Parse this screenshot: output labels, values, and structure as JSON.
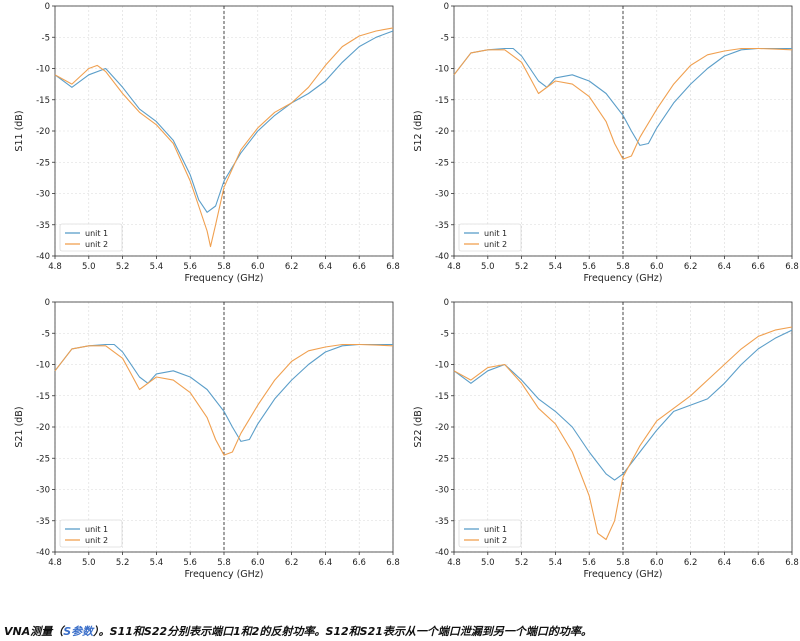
{
  "caption": {
    "part1": "VNA测量（",
    "link": "S参数",
    "part2": "）。S11和S22分别表示端口1和2的反射功率。S12和S21表示从一个端口泄漏到另一个端口的功率。"
  },
  "colors": {
    "unit1": "#5b9ec9",
    "unit2": "#f0a050",
    "marker": "#333333",
    "grid": "#d9d9d9"
  },
  "chart_data": [
    {
      "type": "line",
      "xlabel": "Frequency (GHz)",
      "ylabel": "S11 (dB)",
      "xlim": [
        4.8,
        6.8
      ],
      "ylim": [
        -40,
        0
      ],
      "xticks": [
        "4.8",
        "5.0",
        "5.2",
        "5.4",
        "5.6",
        "5.8",
        "6.0",
        "6.2",
        "6.4",
        "6.6",
        "6.8"
      ],
      "yticks": [
        "0",
        "-5",
        "-10",
        "-15",
        "-20",
        "-25",
        "-30",
        "-35",
        "-40"
      ],
      "grid": true,
      "legend": "lower-left",
      "marker_x": 5.8,
      "series": [
        {
          "name": "unit 1",
          "x": [
            4.8,
            4.9,
            5.0,
            5.1,
            5.2,
            5.3,
            5.4,
            5.5,
            5.6,
            5.65,
            5.7,
            5.75,
            5.8,
            5.9,
            6.0,
            6.1,
            6.2,
            6.3,
            6.4,
            6.5,
            6.6,
            6.7,
            6.8
          ],
          "y": [
            -11,
            -13,
            -11,
            -10,
            -13,
            -16.5,
            -18.5,
            -21.5,
            -27,
            -31,
            -33,
            -32,
            -28,
            -23.5,
            -20,
            -17.5,
            -15.5,
            -14,
            -12,
            -9,
            -6.5,
            -5,
            -4
          ]
        },
        {
          "name": "unit 2",
          "x": [
            4.8,
            4.9,
            5.0,
            5.05,
            5.1,
            5.2,
            5.3,
            5.4,
            5.5,
            5.6,
            5.65,
            5.7,
            5.72,
            5.75,
            5.8,
            5.9,
            6.0,
            6.1,
            6.2,
            6.3,
            6.4,
            6.5,
            6.6,
            6.7,
            6.8
          ],
          "y": [
            -11,
            -12.5,
            -10,
            -9.5,
            -10.5,
            -14,
            -17,
            -19,
            -22,
            -28,
            -32,
            -36,
            -38.5,
            -35,
            -29,
            -23,
            -19.5,
            -17,
            -15.5,
            -13,
            -9.5,
            -6.5,
            -4.8,
            -4,
            -3.5
          ]
        }
      ]
    },
    {
      "type": "line",
      "xlabel": "Frequency (GHz)",
      "ylabel": "S12 (dB)",
      "xlim": [
        4.8,
        6.8
      ],
      "ylim": [
        -40,
        0
      ],
      "xticks": [
        "4.8",
        "5.0",
        "5.2",
        "5.4",
        "5.6",
        "5.8",
        "6.0",
        "6.2",
        "6.4",
        "6.6",
        "6.8"
      ],
      "yticks": [
        "0",
        "-5",
        "-10",
        "-15",
        "-20",
        "-25",
        "-30",
        "-35",
        "-40"
      ],
      "grid": true,
      "legend": "lower-left",
      "marker_x": 5.8,
      "series": [
        {
          "name": "unit 1",
          "x": [
            4.8,
            4.9,
            5.0,
            5.1,
            5.15,
            5.2,
            5.3,
            5.35,
            5.4,
            5.5,
            5.6,
            5.7,
            5.8,
            5.85,
            5.9,
            5.95,
            6.0,
            6.1,
            6.2,
            6.3,
            6.4,
            6.5,
            6.6,
            6.7,
            6.8
          ],
          "y": [
            -11,
            -7.5,
            -7,
            -6.8,
            -6.8,
            -8,
            -12,
            -13,
            -11.5,
            -11,
            -12,
            -14,
            -17.5,
            -20,
            -22.3,
            -22,
            -19.5,
            -15.5,
            -12.5,
            -10,
            -8,
            -7,
            -6.8,
            -6.8,
            -6.8
          ]
        },
        {
          "name": "unit 2",
          "x": [
            4.8,
            4.9,
            5.0,
            5.1,
            5.2,
            5.25,
            5.3,
            5.4,
            5.5,
            5.6,
            5.7,
            5.75,
            5.8,
            5.85,
            5.9,
            6.0,
            6.1,
            6.2,
            6.3,
            6.4,
            6.5,
            6.6,
            6.7,
            6.8
          ],
          "y": [
            -11,
            -7.5,
            -7,
            -7,
            -9,
            -11.5,
            -14,
            -12,
            -12.5,
            -14.5,
            -18.5,
            -22,
            -24.5,
            -24,
            -21,
            -16.5,
            -12.5,
            -9.5,
            -7.8,
            -7.2,
            -6.8,
            -6.8,
            -6.9,
            -7
          ]
        }
      ]
    },
    {
      "type": "line",
      "xlabel": "Frequency (GHz)",
      "ylabel": "S21 (dB)",
      "xlim": [
        4.8,
        6.8
      ],
      "ylim": [
        -40,
        0
      ],
      "xticks": [
        "4.8",
        "5.0",
        "5.2",
        "5.4",
        "5.6",
        "5.8",
        "6.0",
        "6.2",
        "6.4",
        "6.6",
        "6.8"
      ],
      "yticks": [
        "0",
        "-5",
        "-10",
        "-15",
        "-20",
        "-25",
        "-30",
        "-35",
        "-40"
      ],
      "grid": true,
      "legend": "lower-left",
      "marker_x": 5.8,
      "series": [
        {
          "name": "unit 1",
          "x": [
            4.8,
            4.9,
            5.0,
            5.1,
            5.15,
            5.2,
            5.3,
            5.35,
            5.4,
            5.5,
            5.6,
            5.7,
            5.8,
            5.85,
            5.9,
            5.95,
            6.0,
            6.1,
            6.2,
            6.3,
            6.4,
            6.5,
            6.6,
            6.7,
            6.8
          ],
          "y": [
            -11,
            -7.5,
            -7,
            -6.8,
            -6.8,
            -8,
            -12,
            -13,
            -11.5,
            -11,
            -12,
            -14,
            -17.5,
            -20,
            -22.3,
            -22,
            -19.5,
            -15.5,
            -12.5,
            -10,
            -8,
            -7,
            -6.8,
            -6.8,
            -6.8
          ]
        },
        {
          "name": "unit 2",
          "x": [
            4.8,
            4.9,
            5.0,
            5.1,
            5.2,
            5.25,
            5.3,
            5.4,
            5.5,
            5.6,
            5.7,
            5.75,
            5.8,
            5.85,
            5.9,
            6.0,
            6.1,
            6.2,
            6.3,
            6.4,
            6.5,
            6.6,
            6.7,
            6.8
          ],
          "y": [
            -11,
            -7.5,
            -7,
            -7,
            -9,
            -11.5,
            -14,
            -12,
            -12.5,
            -14.5,
            -18.5,
            -22,
            -24.5,
            -24,
            -21,
            -16.5,
            -12.5,
            -9.5,
            -7.8,
            -7.2,
            -6.8,
            -6.8,
            -6.9,
            -7
          ]
        }
      ]
    },
    {
      "type": "line",
      "xlabel": "Frequency (GHz)",
      "ylabel": "S22 (dB)",
      "xlim": [
        4.8,
        6.8
      ],
      "ylim": [
        -40,
        0
      ],
      "xticks": [
        "4.8",
        "5.0",
        "5.2",
        "5.4",
        "5.6",
        "5.8",
        "6.0",
        "6.2",
        "6.4",
        "6.6",
        "6.8"
      ],
      "yticks": [
        "0",
        "-5",
        "-10",
        "-15",
        "-20",
        "-25",
        "-30",
        "-35",
        "-40"
      ],
      "grid": true,
      "legend": "lower-left",
      "marker_x": 5.8,
      "series": [
        {
          "name": "unit 1",
          "x": [
            4.8,
            4.9,
            5.0,
            5.1,
            5.2,
            5.3,
            5.4,
            5.5,
            5.6,
            5.7,
            5.75,
            5.8,
            5.9,
            6.0,
            6.1,
            6.2,
            6.3,
            6.4,
            6.5,
            6.6,
            6.7,
            6.8
          ],
          "y": [
            -11,
            -13,
            -11,
            -10,
            -12.5,
            -15.5,
            -17.5,
            -20,
            -24,
            -27.5,
            -28.5,
            -27.5,
            -24,
            -20.5,
            -17.5,
            -16.5,
            -15.5,
            -13,
            -10,
            -7.5,
            -5.8,
            -4.5
          ]
        },
        {
          "name": "unit 2",
          "x": [
            4.8,
            4.9,
            5.0,
            5.1,
            5.2,
            5.3,
            5.4,
            5.5,
            5.6,
            5.65,
            5.7,
            5.75,
            5.8,
            5.9,
            6.0,
            6.1,
            6.2,
            6.3,
            6.4,
            6.5,
            6.6,
            6.7,
            6.8
          ],
          "y": [
            -11,
            -12.5,
            -10.5,
            -10,
            -13,
            -17,
            -19.5,
            -24,
            -31,
            -37,
            -38,
            -35,
            -28,
            -23,
            -19,
            -17,
            -15,
            -12.5,
            -10,
            -7.5,
            -5.5,
            -4.5,
            -4
          ]
        }
      ]
    }
  ]
}
